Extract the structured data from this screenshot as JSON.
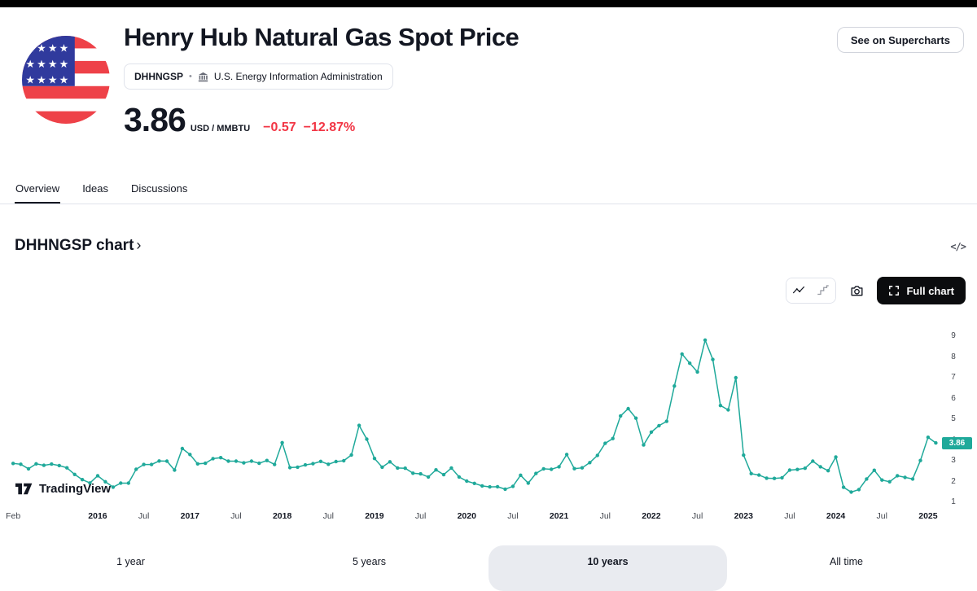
{
  "header": {
    "title": "Henry Hub Natural Gas Spot Price",
    "symbol": "DHHNGSP",
    "separator": "•",
    "source": "U.S. Energy Information Administration",
    "price": "3.86",
    "unit": "USD / MMBTU",
    "change": "−0.57",
    "change_pct": "−12.87%",
    "supercharts_button": "See on Supercharts"
  },
  "tabs": [
    {
      "label": "Overview",
      "active": true
    },
    {
      "label": "Ideas",
      "active": false
    },
    {
      "label": "Discussions",
      "active": false
    }
  ],
  "section": {
    "title": "DHHNGSP chart",
    "chevron": "›",
    "code_icon": "</ >"
  },
  "chart_toolbar": {
    "full_chart_label": "Full chart",
    "icons": [
      "line-chart-icon",
      "step-chart-icon",
      "camera-icon",
      "expand-icon"
    ]
  },
  "watermark": {
    "brand": "TradingView"
  },
  "ranges": [
    {
      "label": "1 year",
      "selected": false
    },
    {
      "label": "5 years",
      "selected": false
    },
    {
      "label": "10 years",
      "selected": true
    },
    {
      "label": "All time",
      "selected": false
    }
  ],
  "colors": {
    "accent_teal": "#1fa99a",
    "negative_red": "#f23645",
    "text_dark": "#131722",
    "border": "#e0e3eb",
    "selected_range_bg": "#e9ebf0"
  },
  "chart_data": {
    "type": "line",
    "series_name": "DHHNGSP — Henry Hub Natural Gas Spot Price",
    "unit": "USD/MMBTU",
    "frequency": "monthly",
    "start": "2015-02",
    "end": "2025-02",
    "line_color": "#1fa99a",
    "markers": true,
    "grid": false,
    "legend": "none",
    "ylim": [
      0.5,
      9.5
    ],
    "y_ticks": [
      1,
      2,
      3,
      4,
      5,
      6,
      7,
      8,
      9
    ],
    "last_price": "3.86",
    "x_ticks": [
      {
        "label": "Feb",
        "index": 0,
        "year": false
      },
      {
        "label": "2016",
        "index": 11,
        "year": true
      },
      {
        "label": "Jul",
        "index": 17,
        "year": false
      },
      {
        "label": "2017",
        "index": 23,
        "year": true
      },
      {
        "label": "Jul",
        "index": 29,
        "year": false
      },
      {
        "label": "2018",
        "index": 35,
        "year": true
      },
      {
        "label": "Jul",
        "index": 41,
        "year": false
      },
      {
        "label": "2019",
        "index": 47,
        "year": true
      },
      {
        "label": "Jul",
        "index": 53,
        "year": false
      },
      {
        "label": "2020",
        "index": 59,
        "year": true
      },
      {
        "label": "Jul",
        "index": 65,
        "year": false
      },
      {
        "label": "2021",
        "index": 71,
        "year": true
      },
      {
        "label": "Jul",
        "index": 77,
        "year": false
      },
      {
        "label": "2022",
        "index": 83,
        "year": true
      },
      {
        "label": "Jul",
        "index": 89,
        "year": false
      },
      {
        "label": "2023",
        "index": 95,
        "year": true
      },
      {
        "label": "Jul",
        "index": 101,
        "year": false
      },
      {
        "label": "2024",
        "index": 107,
        "year": true
      },
      {
        "label": "Jul",
        "index": 113,
        "year": false
      },
      {
        "label": "2025",
        "index": 119,
        "year": true
      }
    ],
    "values": [
      2.87,
      2.83,
      2.61,
      2.85,
      2.78,
      2.84,
      2.77,
      2.66,
      2.34,
      2.09,
      1.93,
      2.28,
      1.99,
      1.73,
      1.92,
      1.92,
      2.59,
      2.82,
      2.82,
      2.99,
      2.98,
      2.55,
      3.59,
      3.3,
      2.85,
      2.88,
      3.1,
      3.15,
      2.98,
      2.98,
      2.9,
      2.98,
      2.88,
      3.01,
      2.82,
      3.87,
      2.67,
      2.69,
      2.8,
      2.86,
      2.97,
      2.83,
      2.96,
      3.0,
      3.28,
      4.7,
      4.04,
      3.11,
      2.69,
      2.95,
      2.65,
      2.64,
      2.4,
      2.37,
      2.22,
      2.56,
      2.33,
      2.65,
      2.22,
      2.02,
      1.91,
      1.79,
      1.74,
      1.75,
      1.63,
      1.77,
      2.3,
      1.92,
      2.39,
      2.61,
      2.59,
      2.71,
      3.3,
      2.62,
      2.66,
      2.91,
      3.26,
      3.84,
      4.07,
      5.16,
      5.51,
      5.05,
      3.76,
      4.38,
      4.69,
      4.9,
      6.6,
      8.14,
      7.7,
      7.28,
      8.81,
      7.88,
      5.66,
      5.45,
      7.0,
      3.27,
      2.38,
      2.31,
      2.16,
      2.15,
      2.18,
      2.55,
      2.58,
      2.64,
      2.98,
      2.71,
      2.52,
      3.18,
      1.72,
      1.49,
      1.61,
      2.12,
      2.54,
      2.07,
      1.99,
      2.28,
      2.2,
      2.12,
      3.01,
      4.13,
      3.86
    ]
  }
}
